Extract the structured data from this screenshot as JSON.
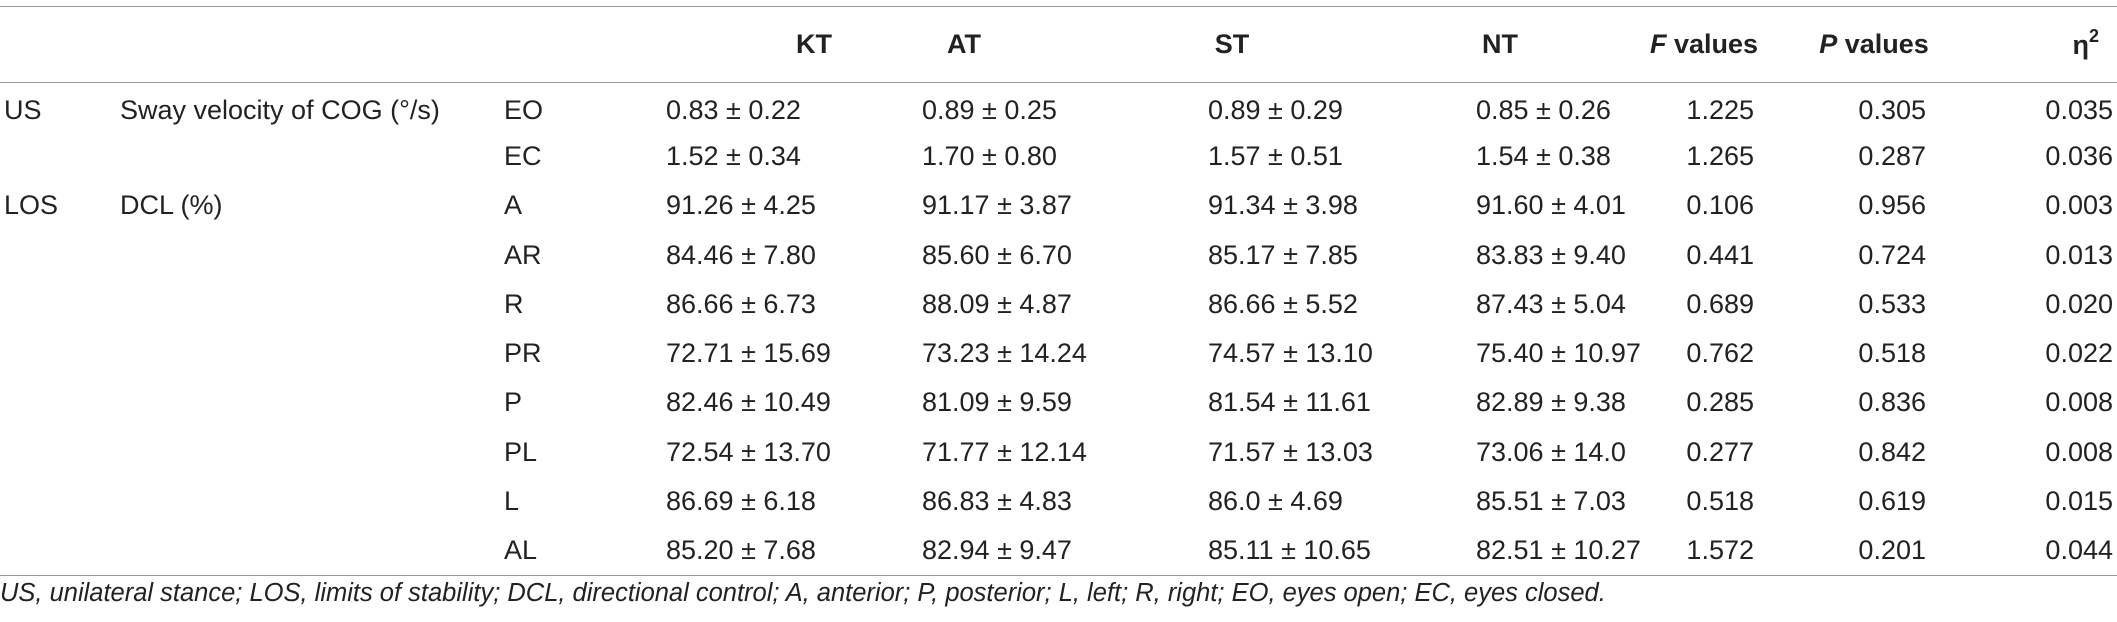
{
  "headers": {
    "group": "",
    "measure": "",
    "condition": "",
    "kt": "KT",
    "at": "AT",
    "st": "ST",
    "nt": "NT",
    "f_letter": "F",
    "f_rest": " values",
    "p_letter": "P",
    "p_rest": " values",
    "eta": "η",
    "eta_sup": "2"
  },
  "rows": [
    {
      "group": "US",
      "measure": "Sway velocity of COG (°/s)",
      "cond": "EO",
      "kt": "0.83 ± 0.22",
      "at": "0.89 ± 0.25",
      "st": "0.89 ± 0.29",
      "nt": "0.85 ± 0.26",
      "f": "1.225",
      "p": "0.305",
      "eta": "0.035"
    },
    {
      "group": "",
      "measure": "",
      "cond": "EC",
      "kt": "1.52 ± 0.34",
      "at": "1.70 ± 0.80",
      "st": "1.57 ± 0.51",
      "nt": "1.54 ± 0.38",
      "f": "1.265",
      "p": "0.287",
      "eta": "0.036"
    },
    {
      "group": "LOS",
      "measure": "DCL (%)",
      "cond": "A",
      "kt": "91.26 ± 4.25",
      "at": "91.17 ± 3.87",
      "st": "91.34 ± 3.98",
      "nt": "91.60 ± 4.01",
      "f": "0.106",
      "p": "0.956",
      "eta": "0.003"
    },
    {
      "group": "",
      "measure": "",
      "cond": "AR",
      "kt": "84.46 ± 7.80",
      "at": "85.60 ± 6.70",
      "st": "85.17 ± 7.85",
      "nt": "83.83 ± 9.40",
      "f": "0.441",
      "p": "0.724",
      "eta": "0.013"
    },
    {
      "group": "",
      "measure": "",
      "cond": "R",
      "kt": "86.66 ± 6.73",
      "at": "88.09 ± 4.87",
      "st": "86.66 ± 5.52",
      "nt": "87.43 ± 5.04",
      "f": "0.689",
      "p": "0.533",
      "eta": "0.020"
    },
    {
      "group": "",
      "measure": "",
      "cond": "PR",
      "kt": "72.71 ± 15.69",
      "at": "73.23 ± 14.24",
      "st": "74.57 ± 13.10",
      "nt": "75.40 ± 10.97",
      "f": "0.762",
      "p": "0.518",
      "eta": "0.022"
    },
    {
      "group": "",
      "measure": "",
      "cond": "P",
      "kt": "82.46 ± 10.49",
      "at": "81.09 ± 9.59",
      "st": "81.54 ± 11.61",
      "nt": "82.89 ± 9.38",
      "f": "0.285",
      "p": "0.836",
      "eta": "0.008"
    },
    {
      "group": "",
      "measure": "",
      "cond": "PL",
      "kt": "72.54 ± 13.70",
      "at": "71.77 ± 12.14",
      "st": "71.57 ± 13.03",
      "nt": "73.06 ± 14.0",
      "f": "0.277",
      "p": "0.842",
      "eta": "0.008"
    },
    {
      "group": "",
      "measure": "",
      "cond": "L",
      "kt": "86.69 ± 6.18",
      "at": "86.83 ± 4.83",
      "st": "86.0 ± 4.69",
      "nt": "85.51 ± 7.03",
      "f": "0.518",
      "p": "0.619",
      "eta": "0.015"
    },
    {
      "group": "",
      "measure": "",
      "cond": "AL",
      "kt": "85.20 ± 7.68",
      "at": "82.94 ± 9.47",
      "st": "85.11 ± 10.65",
      "nt": "82.51 ± 10.27",
      "f": "1.572",
      "p": "0.201",
      "eta": "0.044"
    }
  ],
  "footnote": "US, unilateral stance; LOS, limits of stability; DCL, directional control; A, anterior; P, posterior; L, left; R, right; EO, eyes open; EC, eyes closed."
}
